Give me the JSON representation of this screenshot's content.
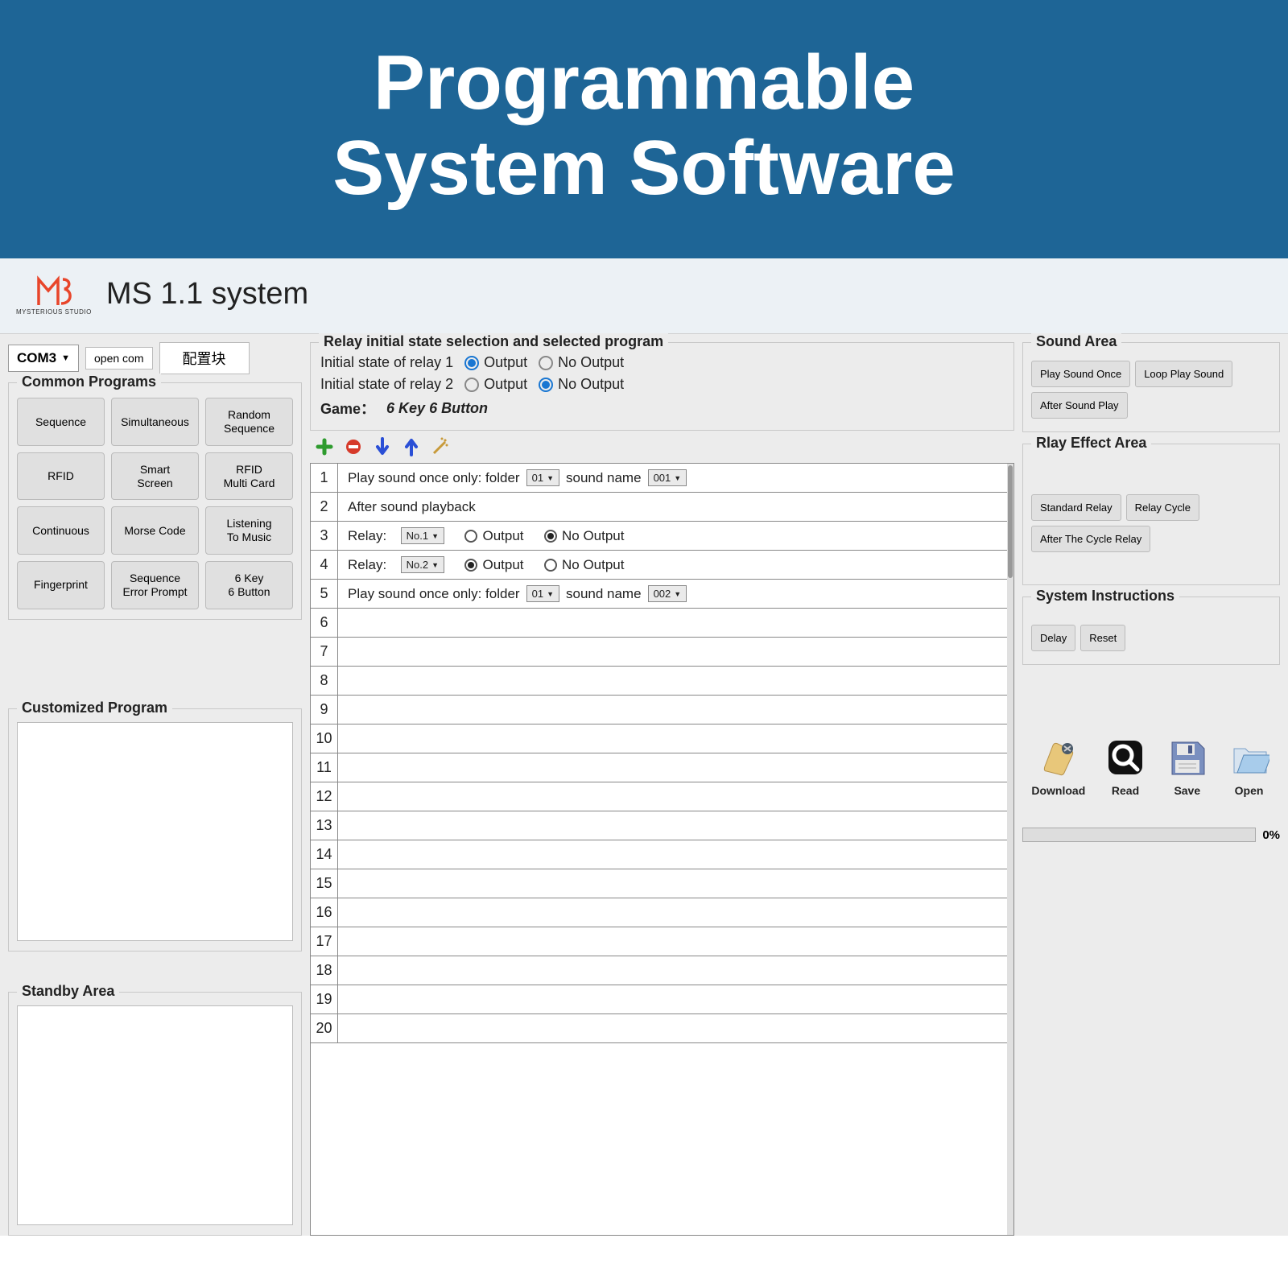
{
  "banner": {
    "line1": "Programmable",
    "line2": "System Software"
  },
  "titlebar": {
    "logo_brand": "MYSTERIOUS STUDIO",
    "title": "MS 1.1 system"
  },
  "top": {
    "com_port": "COM3",
    "open_com": "open com",
    "config": "配置块"
  },
  "common_programs": {
    "title": "Common Programs",
    "items": [
      "Sequence",
      "Simultaneous",
      "Random\nSequence",
      "RFID",
      "Smart\nScreen",
      "RFID\nMulti Card",
      "Continuous",
      "Morse Code",
      "Listening\nTo Music",
      "Fingerprint",
      "Sequence\nError Prompt",
      "6 Key\n6 Button"
    ]
  },
  "customized": {
    "title": "Customized Program"
  },
  "standby": {
    "title": "Standby Area"
  },
  "relay_panel": {
    "title": "Relay initial state selection and selected program",
    "row1_label": "Initial state of relay 1",
    "row2_label": "Initial state of relay 2",
    "opt_output": "Output",
    "opt_no_output": "No Output",
    "relay1_sel": "output",
    "relay2_sel": "no_output",
    "game_label": "Game：",
    "game_value": "6 Key 6 Button"
  },
  "steps": {
    "count": 20,
    "rows": [
      {
        "n": 1,
        "type": "play_once",
        "folder": "01",
        "sound": "001"
      },
      {
        "n": 2,
        "type": "after_playback",
        "text": "After sound playback"
      },
      {
        "n": 3,
        "type": "relay",
        "relay": "No.1",
        "sel": "no_output"
      },
      {
        "n": 4,
        "type": "relay",
        "relay": "No.2",
        "sel": "output"
      },
      {
        "n": 5,
        "type": "play_once",
        "folder": "01",
        "sound": "002"
      }
    ],
    "labels": {
      "play_once_prefix": "Play sound once only: folder",
      "sound_name": "sound name",
      "relay_prefix": "Relay:",
      "output": "Output",
      "no_output": "No Output"
    }
  },
  "sound_area": {
    "title": "Sound Area",
    "buttons": [
      "Play Sound Once",
      "Loop Play Sound",
      "After Sound Play"
    ]
  },
  "relay_effect": {
    "title": "Rlay Effect Area",
    "buttons": [
      "Standard Relay",
      "Relay Cycle",
      "After The Cycle Relay"
    ]
  },
  "system_instr": {
    "title": "System Instructions",
    "buttons": [
      "Delay",
      "Reset"
    ]
  },
  "file_ops": {
    "items": [
      "Download",
      "Read",
      "Save",
      "Open"
    ]
  },
  "progress": {
    "pct": "0%"
  },
  "colors": {
    "banner_bg": "#1e6596",
    "accent_blue": "#1976d2",
    "logo_red": "#e8452a"
  }
}
